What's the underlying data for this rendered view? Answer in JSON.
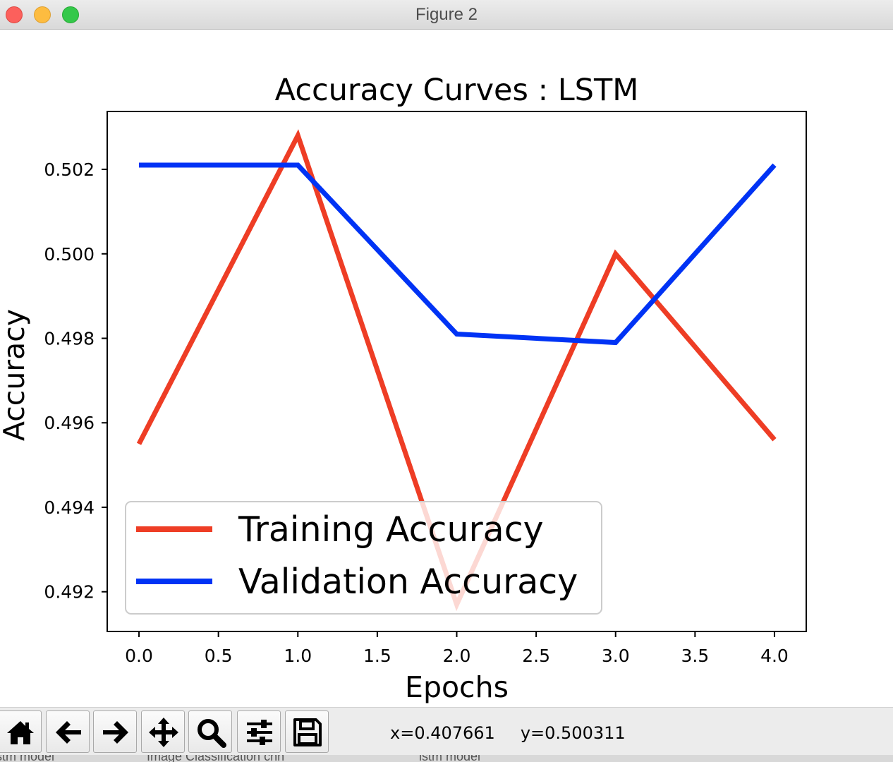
{
  "window": {
    "title": "Figure 2"
  },
  "chart_data": {
    "type": "line",
    "title": "Accuracy Curves : LSTM",
    "xlabel": "Epochs",
    "ylabel": "Accuracy",
    "x": [
      0,
      1,
      2,
      3,
      4
    ],
    "xlim": [
      -0.2,
      4.2
    ],
    "ylim": [
      0.49106,
      0.50337
    ],
    "xticks": [
      0.0,
      0.5,
      1.0,
      1.5,
      2.0,
      2.5,
      3.0,
      3.5,
      4.0
    ],
    "xtick_labels": [
      "0.0",
      "0.5",
      "1.0",
      "1.5",
      "2.0",
      "2.5",
      "3.0",
      "3.5",
      "4.0"
    ],
    "yticks": [
      0.492,
      0.494,
      0.496,
      0.498,
      0.5,
      0.502
    ],
    "ytick_labels": [
      "0.492",
      "0.494",
      "0.496",
      "0.498",
      "0.500",
      "0.502"
    ],
    "grid": false,
    "legend_position": "lower-left",
    "series": [
      {
        "name": "Training Accuracy",
        "color": "#ee3d25",
        "values": [
          0.4955,
          0.5028,
          0.4917,
          0.5,
          0.4956
        ]
      },
      {
        "name": "Validation Accuracy",
        "color": "#0033f5",
        "values": [
          0.5021,
          0.5021,
          0.4981,
          0.4979,
          0.5021
        ]
      }
    ]
  },
  "toolbar": {
    "buttons": [
      {
        "icon": "home-icon"
      },
      {
        "icon": "back-arrow-icon"
      },
      {
        "icon": "forward-arrow-icon"
      },
      {
        "icon": "pan-move-icon"
      },
      {
        "icon": "zoom-magnifier-icon"
      },
      {
        "icon": "configure-subplots-icon"
      },
      {
        "icon": "save-floppy-icon"
      }
    ],
    "coord_x": "x=0.407661",
    "coord_y": "y=0.500311"
  },
  "taskbar": {
    "items": [
      "lstm model",
      "Image Classification cnn",
      "lstm model"
    ]
  }
}
